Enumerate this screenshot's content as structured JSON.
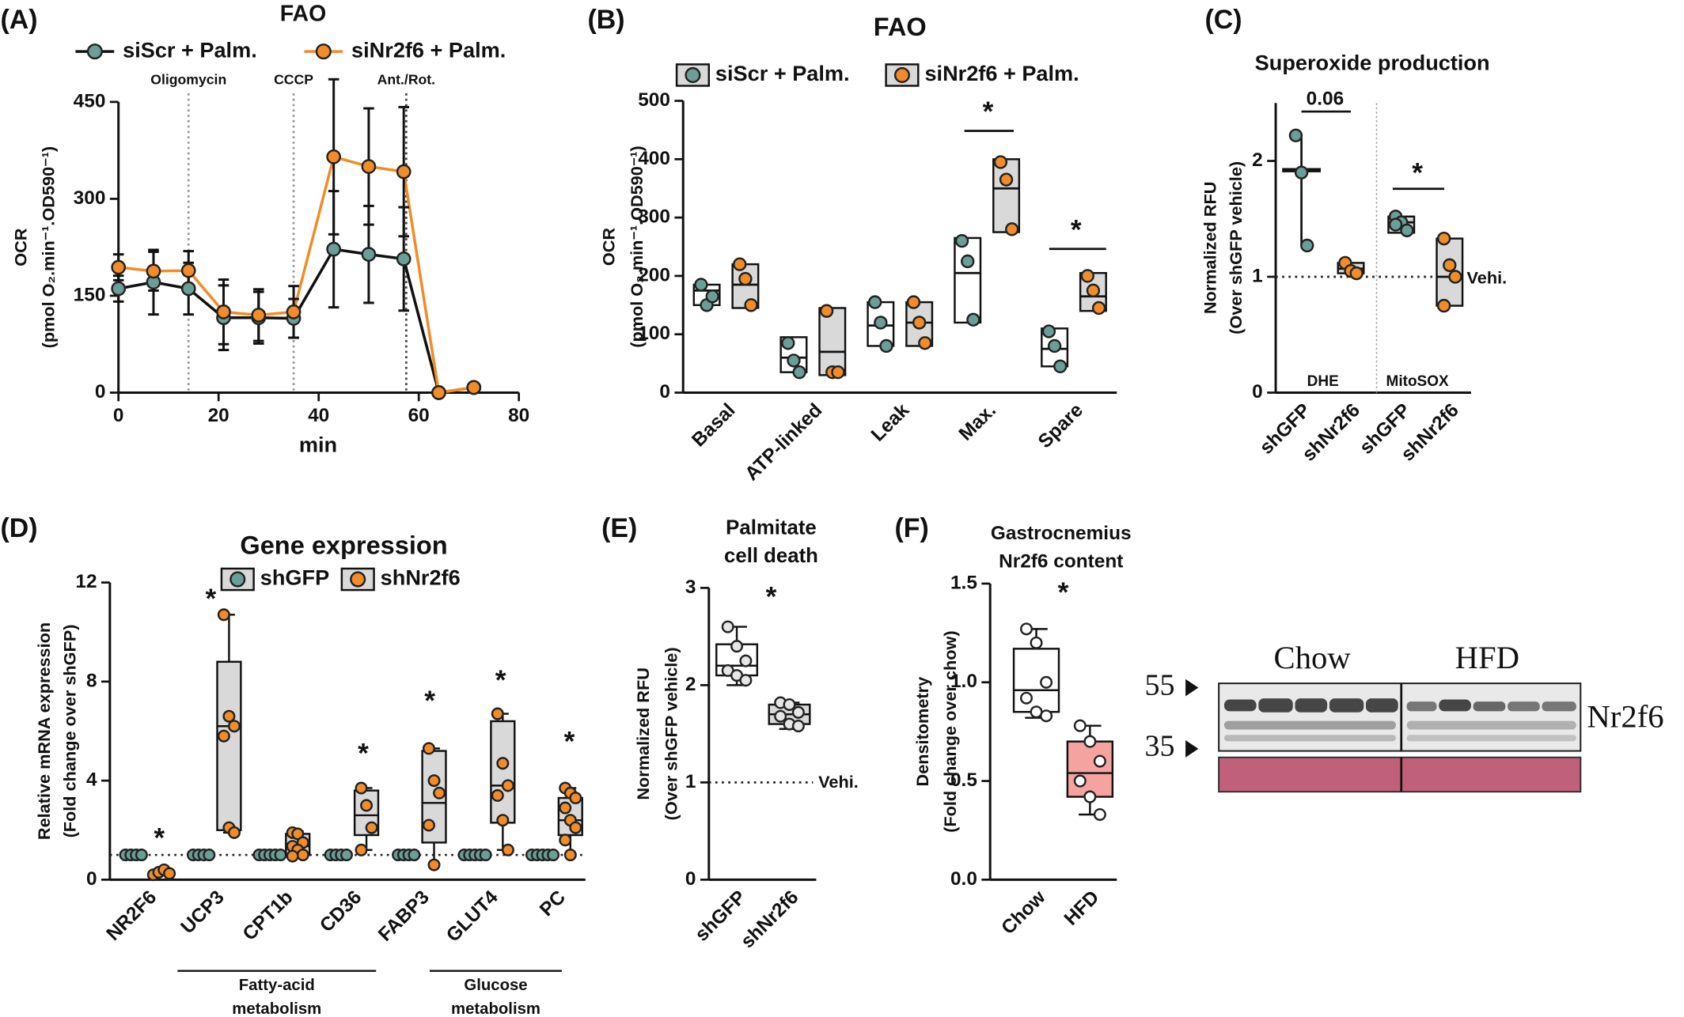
{
  "chart_data": [
    {
      "type": "line",
      "panel_label": "(A)",
      "title": "FAO",
      "xlabel": "min",
      "ylabel": [
        "OCR",
        "(pmol O₂.min⁻¹.OD590⁻¹)"
      ],
      "xlim": [
        0,
        80
      ],
      "xticks": [
        0,
        20,
        40,
        60,
        80
      ],
      "ylim": [
        0,
        450
      ],
      "yticks": [
        0,
        150,
        300,
        450
      ],
      "events": [
        {
          "x": 14,
          "label": "Oligomycin"
        },
        {
          "x": 35,
          "label": "CCCP"
        },
        {
          "x": 57.5,
          "label": "Ant./Rot."
        }
      ],
      "series": [
        {
          "name": "siScr + Palm.",
          "color": "#6b9e96",
          "line_color": "#111111",
          "x": [
            0,
            7,
            14,
            21,
            28,
            35,
            43,
            50,
            57,
            64,
            71
          ],
          "values": [
            161,
            171,
            161,
            116,
            116,
            115,
            222,
            214,
            207,
            0,
            8
          ],
          "errors": [
            20,
            50,
            40,
            50,
            40,
            30,
            90,
            75,
            80,
            0,
            5
          ]
        },
        {
          "name": "siNr2f6 + Palm.",
          "color": "#f28c28",
          "line_color": "#f28c28",
          "x": [
            0,
            7,
            14,
            21,
            28,
            35,
            43,
            50,
            57,
            64,
            71
          ],
          "values": [
            194,
            188,
            189,
            125,
            120,
            125,
            365,
            350,
            342,
            0,
            8
          ],
          "errors": [
            20,
            30,
            30,
            50,
            40,
            40,
            120,
            90,
            100,
            0,
            5
          ]
        }
      ]
    },
    {
      "type": "floating_bar",
      "panel_label": "(B)",
      "title": "FAO",
      "ylabel": [
        "OCR",
        "(pmol O₂.min⁻¹.OD590⁻¹)"
      ],
      "categories": [
        "Basal",
        "ATP-linked",
        "Leak",
        "Max.",
        "Spare"
      ],
      "ylim": [
        0,
        500
      ],
      "yticks": [
        0,
        100,
        200,
        300,
        400,
        500
      ],
      "annotations": [
        "*",
        "*"
      ],
      "series": [
        {
          "name": "siScr + Palm.",
          "color": "#6b9e96",
          "box_color": "#ffffff",
          "values": [
            {
              "min": 150,
              "median": 175,
              "max": 185,
              "points": [
                185,
                150,
                165
              ]
            },
            {
              "min": 35,
              "median": 60,
              "max": 95,
              "points": [
                85,
                55,
                35
              ]
            },
            {
              "min": 80,
              "median": 115,
              "max": 155,
              "points": [
                155,
                120,
                80
              ]
            },
            {
              "min": 120,
              "median": 205,
              "max": 265,
              "points": [
                260,
                225,
                125
              ]
            },
            {
              "min": 45,
              "median": 75,
              "max": 110,
              "points": [
                105,
                80,
                45
              ]
            }
          ]
        },
        {
          "name": "siNr2f6 + Palm.",
          "color": "#f28c28",
          "box_color": "#d9d9d9",
          "values": [
            {
              "min": 145,
              "median": 185,
              "max": 220,
              "points": [
                220,
                195,
                150
              ]
            },
            {
              "min": 30,
              "median": 70,
              "max": 145,
              "points": [
                140,
                35,
                35
              ]
            },
            {
              "min": 80,
              "median": 120,
              "max": 155,
              "points": [
                155,
                120,
                85
              ]
            },
            {
              "min": 275,
              "median": 350,
              "max": 400,
              "points": [
                395,
                365,
                280
              ]
            },
            {
              "min": 140,
              "median": 165,
              "max": 205,
              "points": [
                200,
                175,
                145
              ]
            }
          ]
        }
      ]
    },
    {
      "type": "floating_bar",
      "panel_label": "(C)",
      "title": "Superoxide production",
      "ylabel": [
        "Normalized RFU",
        "(Over shGFP vehicle)"
      ],
      "categories": [
        "shGFP",
        "shNr2f6",
        "shGFP",
        "shNr2f6"
      ],
      "ylim": [
        0,
        2.5
      ],
      "yticks": [
        0,
        1,
        2
      ],
      "colors": [
        "#6b9e96",
        "#f28c28",
        "#6b9e96",
        "#f28c28"
      ],
      "box_colors": [
        "none",
        "#d9d9d9",
        "#d9d9d9",
        "#d9d9d9"
      ],
      "values": [
        {
          "min": 1.27,
          "median": 1.92,
          "max": 2.22,
          "points": [
            2.22,
            1.9,
            1.27
          ]
        },
        {
          "min": 1.03,
          "median": 1.07,
          "max": 1.12,
          "points": [
            1.12,
            1.05,
            1.03
          ]
        },
        {
          "min": 1.38,
          "median": 1.47,
          "max": 1.52,
          "points": [
            1.52,
            1.47,
            1.4,
            1.45
          ]
        },
        {
          "min": 0.75,
          "median": 1.0,
          "max": 1.33,
          "points": [
            1.33,
            1.1,
            1.0,
            0.75
          ]
        }
      ],
      "reference_line": {
        "value": 1,
        "label": "Vehi."
      },
      "annotations": [
        "0.06",
        "*"
      ],
      "groups": [
        "DHE",
        "MitoSOX"
      ]
    },
    {
      "type": "box",
      "panel_label": "(D)",
      "title": "Gene expression",
      "ylabel": [
        "Relative mRNA expression",
        "(Fold change over shGFP)"
      ],
      "categories": [
        "NR2F6",
        "UCP3",
        "CPT1b",
        "CD36",
        "FABP3",
        "GLUT4",
        "PC"
      ],
      "ylim": [
        0,
        12
      ],
      "yticks": [
        0,
        4,
        8,
        12
      ],
      "reference_line": {
        "value": 1
      },
      "annotations": [
        "*",
        "*",
        "*",
        "*",
        "*",
        "*"
      ],
      "groups": [
        [
          "Fatty-acid",
          "metabolism"
        ],
        [
          "Glucose",
          "metabolism"
        ]
      ],
      "series": [
        {
          "name": "shGFP",
          "color": "#6b9e96",
          "box_color": "#d9d9d9",
          "values": [
            {
              "points": [
                1,
                1,
                1,
                1
              ]
            },
            {
              "points": [
                1,
                1,
                1,
                1
              ]
            },
            {
              "points": [
                1,
                1,
                1,
                1,
                1
              ]
            },
            {
              "points": [
                1,
                1,
                1,
                1
              ]
            },
            {
              "points": [
                1,
                1,
                1,
                1
              ]
            },
            {
              "points": [
                1,
                1,
                1,
                1,
                1
              ]
            },
            {
              "points": [
                1,
                1,
                1,
                1,
                1
              ]
            }
          ]
        },
        {
          "name": "shNr2f6",
          "color": "#f28c28",
          "box_color": "#d9d9d9",
          "values": [
            {
              "points": [
                0.2,
                0.3,
                0.4,
                0.25
              ]
            },
            {
              "min": 1.9,
              "q1": 2.0,
              "median": 6.2,
              "q3": 8.8,
              "max": 10.7,
              "points": [
                10.7,
                6.6,
                6.2,
                5.8,
                2.1,
                1.9
              ]
            },
            {
              "min": 0.9,
              "q1": 1.0,
              "median": 1.35,
              "q3": 1.85,
              "max": 1.95,
              "points": [
                1.9,
                1.85,
                1.5,
                1.35,
                1.2,
                1.0,
                0.95
              ]
            },
            {
              "min": 1.2,
              "q1": 1.8,
              "median": 2.6,
              "q3": 3.6,
              "max": 3.7,
              "points": [
                3.7,
                3.0,
                2.1,
                1.2
              ]
            },
            {
              "min": 0.6,
              "q1": 1.5,
              "median": 3.1,
              "q3": 5.2,
              "max": 5.3,
              "points": [
                5.3,
                4.0,
                3.5,
                2.2,
                0.6
              ]
            },
            {
              "min": 1.2,
              "q1": 2.3,
              "median": 3.8,
              "q3": 6.4,
              "max": 6.7,
              "points": [
                6.7,
                4.7,
                3.8,
                3.4,
                2.4,
                1.2
              ]
            },
            {
              "min": 1.0,
              "q1": 1.8,
              "median": 2.4,
              "q3": 3.3,
              "max": 3.7,
              "points": [
                3.7,
                3.5,
                3.3,
                2.9,
                2.4,
                2.1,
                1.6,
                1.0
              ]
            }
          ]
        }
      ]
    },
    {
      "type": "box",
      "panel_label": "(E)",
      "title": [
        "Palmitate",
        "cell death"
      ],
      "ylabel": [
        "Normalized RFU",
        "(Over shGFP vehicle)"
      ],
      "categories": [
        "shGFP",
        "shNr2f6"
      ],
      "ylim": [
        0,
        3
      ],
      "yticks": [
        0,
        1,
        2,
        3
      ],
      "colors": [
        "#e6e6e6",
        "#e6e6e6"
      ],
      "box_colors": [
        "#ffffff",
        "#d9d9d9"
      ],
      "values": [
        {
          "min": 2.0,
          "q1": 2.1,
          "median": 2.2,
          "q3": 2.42,
          "max": 2.6,
          "points": [
            2.6,
            2.4,
            2.25,
            2.15,
            2.1,
            2.05
          ]
        },
        {
          "min": 1.55,
          "q1": 1.6,
          "median": 1.7,
          "q3": 1.8,
          "max": 1.82,
          "points": [
            1.82,
            1.8,
            1.72,
            1.68,
            1.6,
            1.58
          ]
        }
      ],
      "reference_line": {
        "value": 1,
        "label": "Vehi."
      },
      "annotations": [
        "*"
      ]
    },
    {
      "type": "box",
      "panel_label": "(F)",
      "title": [
        "Gastrocnemius",
        "Nr2f6 content"
      ],
      "ylabel": [
        "Densitometry",
        "(Fold change over chow)"
      ],
      "categories": [
        "Chow",
        "HFD"
      ],
      "ylim": [
        0,
        1.5
      ],
      "yticks": [
        {
          "value": 0,
          "label": "0.0"
        },
        0.5,
        {
          "value": 1,
          "label": "1.0"
        },
        1.5
      ],
      "colors": [
        "#ffffff",
        "#ffffff"
      ],
      "box_colors": [
        "#ffffff",
        "#f4a3a0"
      ],
      "values": [
        {
          "min": 0.82,
          "q1": 0.85,
          "median": 0.96,
          "q3": 1.17,
          "max": 1.27,
          "points": [
            1.27,
            1.2,
            1.0,
            0.92,
            0.85,
            0.83
          ]
        },
        {
          "min": 0.33,
          "q1": 0.42,
          "median": 0.54,
          "q3": 0.7,
          "max": 0.78,
          "points": [
            0.78,
            0.7,
            0.6,
            0.5,
            0.42,
            0.33
          ]
        }
      ],
      "annotations": [
        "*"
      ]
    }
  ],
  "blot": {
    "groups": [
      "Chow",
      "HFD"
    ],
    "markers": [
      55,
      35
    ],
    "protein": "Nr2f6"
  }
}
